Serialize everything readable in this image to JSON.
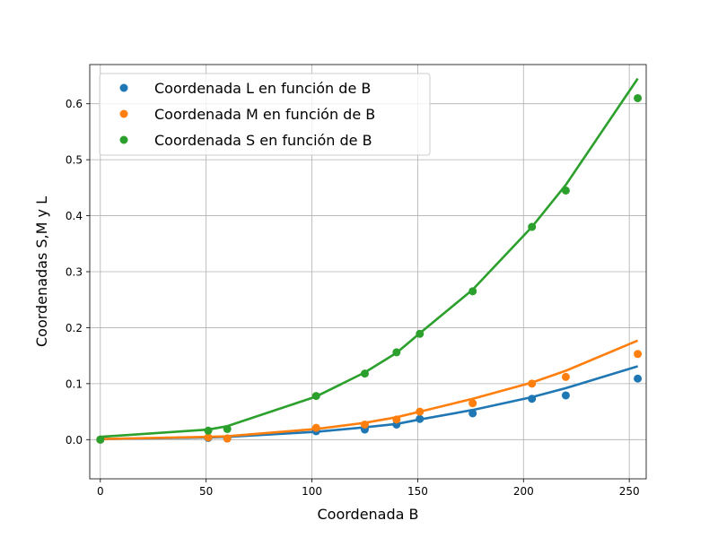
{
  "chart_data": {
    "type": "scatter",
    "title": "",
    "xlabel": "Coordenada B",
    "ylabel": "Coordenadas S,M y L",
    "xlim": [
      -5,
      258
    ],
    "ylim": [
      -0.07,
      0.67
    ],
    "xticks": [
      0,
      50,
      100,
      150,
      200,
      250
    ],
    "yticks": [
      0.0,
      0.1,
      0.2,
      0.3,
      0.4,
      0.5,
      0.6
    ],
    "xtick_labels": [
      "0",
      "50",
      "100",
      "150",
      "200",
      "250"
    ],
    "ytick_labels": [
      "0.0",
      "0.1",
      "0.2",
      "0.3",
      "0.4",
      "0.5",
      "0.6"
    ],
    "grid": true,
    "legend_position": "top-left",
    "series": [
      {
        "name": "Coordenada L en función de B",
        "color": "#1f77b4",
        "points": [
          [
            0,
            0.0
          ],
          [
            51,
            0.003
          ],
          [
            60,
            0.002
          ],
          [
            102,
            0.015
          ],
          [
            125,
            0.018
          ],
          [
            140,
            0.027
          ],
          [
            151,
            0.037
          ],
          [
            176,
            0.047
          ],
          [
            204,
            0.073
          ],
          [
            220,
            0.079
          ],
          [
            254,
            0.109
          ]
        ],
        "fit": [
          [
            0,
            0.001
          ],
          [
            51,
            0.004
          ],
          [
            60,
            0.005
          ],
          [
            102,
            0.014
          ],
          [
            125,
            0.022
          ],
          [
            140,
            0.028
          ],
          [
            151,
            0.036
          ],
          [
            176,
            0.053
          ],
          [
            204,
            0.076
          ],
          [
            220,
            0.092
          ],
          [
            254,
            0.131
          ]
        ]
      },
      {
        "name": "Coordenada M en función de B",
        "color": "#ff7f0e",
        "points": [
          [
            0,
            0.0
          ],
          [
            51,
            0.004
          ],
          [
            60,
            0.002
          ],
          [
            102,
            0.021
          ],
          [
            125,
            0.027
          ],
          [
            140,
            0.036
          ],
          [
            151,
            0.05
          ],
          [
            176,
            0.065
          ],
          [
            204,
            0.1
          ],
          [
            220,
            0.112
          ],
          [
            254,
            0.153
          ]
        ],
        "fit": [
          [
            0,
            0.001
          ],
          [
            51,
            0.005
          ],
          [
            60,
            0.006
          ],
          [
            102,
            0.019
          ],
          [
            125,
            0.03
          ],
          [
            140,
            0.04
          ],
          [
            151,
            0.05
          ],
          [
            176,
            0.073
          ],
          [
            204,
            0.102
          ],
          [
            220,
            0.123
          ],
          [
            254,
            0.177
          ]
        ]
      },
      {
        "name": "Coordenada S en función de B",
        "color": "#2ca02c",
        "points": [
          [
            0,
            0.0
          ],
          [
            51,
            0.016
          ],
          [
            60,
            0.019
          ],
          [
            102,
            0.078
          ],
          [
            125,
            0.118
          ],
          [
            140,
            0.156
          ],
          [
            151,
            0.189
          ],
          [
            176,
            0.265
          ],
          [
            204,
            0.38
          ],
          [
            220,
            0.445
          ],
          [
            254,
            0.61
          ]
        ],
        "fit": [
          [
            0,
            0.005
          ],
          [
            51,
            0.018
          ],
          [
            60,
            0.024
          ],
          [
            102,
            0.077
          ],
          [
            125,
            0.12
          ],
          [
            140,
            0.155
          ],
          [
            151,
            0.19
          ],
          [
            176,
            0.268
          ],
          [
            204,
            0.38
          ],
          [
            220,
            0.455
          ],
          [
            254,
            0.645
          ]
        ]
      }
    ]
  }
}
